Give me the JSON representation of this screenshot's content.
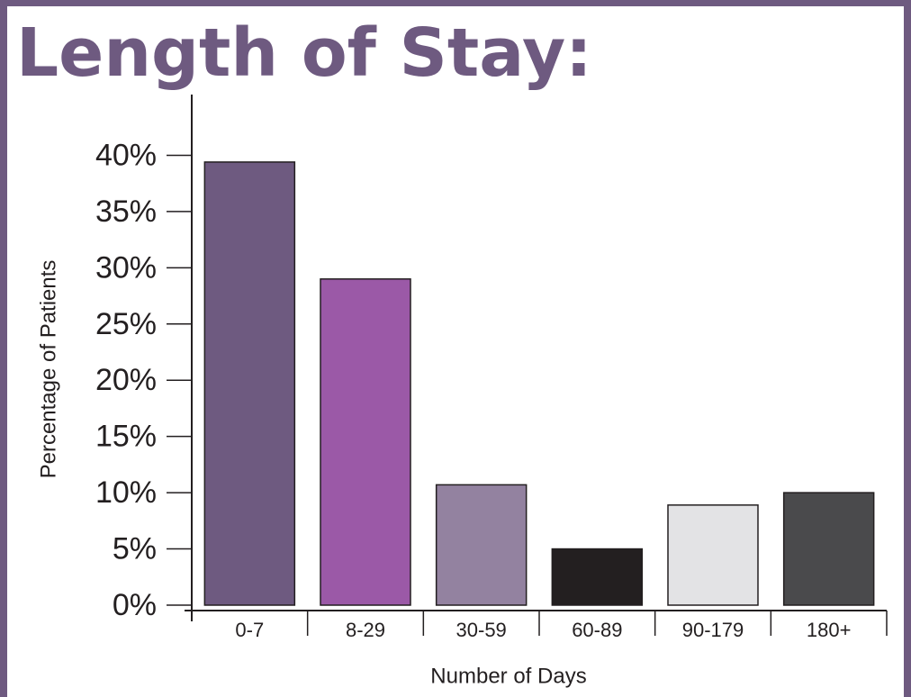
{
  "chart_data": {
    "type": "bar",
    "title": "Length of Stay:",
    "x_label": "Number of Days",
    "y_label": "Percentage of Patients",
    "categories": [
      "0-7",
      "8-29",
      "30-59",
      "60-89",
      "90-179",
      "180+"
    ],
    "values": [
      39.4,
      29.0,
      10.7,
      5.0,
      8.9,
      10.0
    ],
    "colors": [
      "#6e5a80",
      "#9b59a7",
      "#9382a0",
      "#231f20",
      "#e3e3e5",
      "#4a4a4c"
    ],
    "ylim": [
      0,
      45
    ],
    "yticks": [
      {
        "value": 0,
        "label": "0%"
      },
      {
        "value": 5,
        "label": "5%"
      },
      {
        "value": 10,
        "label": "10%"
      },
      {
        "value": 15,
        "label": "15%"
      },
      {
        "value": 20,
        "label": "20%"
      },
      {
        "value": 25,
        "label": "25%"
      },
      {
        "value": 30,
        "label": "30%"
      },
      {
        "value": 35,
        "label": "35%"
      },
      {
        "value": 40,
        "label": "40%"
      }
    ],
    "grid": false
  }
}
